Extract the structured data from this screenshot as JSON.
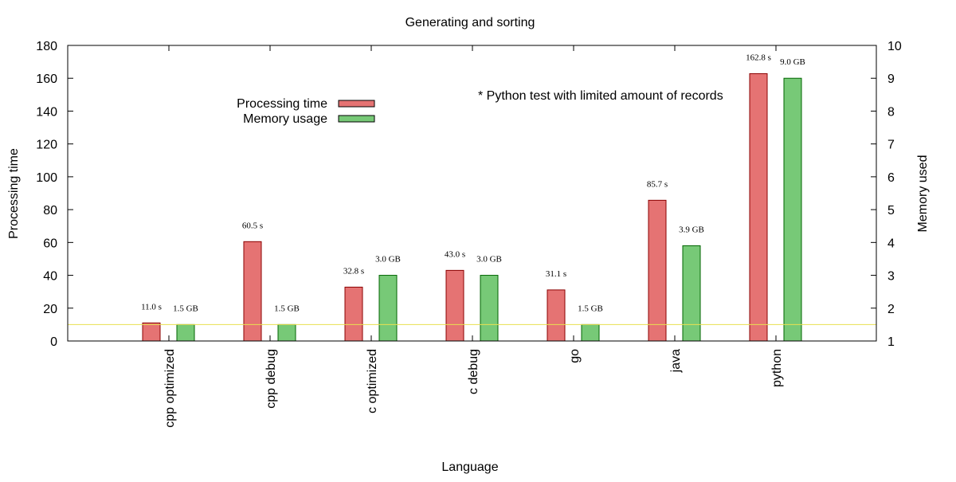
{
  "chart_data": {
    "type": "bar",
    "title": "Generating and sorting",
    "xlabel": "Language",
    "ylabel": "Processing time",
    "y2label": "Memory used",
    "categories": [
      "cpp optimized",
      "cpp debug",
      "c optimized",
      "c debug",
      "go",
      "java",
      "python"
    ],
    "ylim": [
      0,
      180
    ],
    "yticks": [
      0,
      20,
      40,
      60,
      80,
      100,
      120,
      140,
      160,
      180
    ],
    "y2lim": [
      1,
      10
    ],
    "y2ticks": [
      1,
      2,
      3,
      4,
      5,
      6,
      7,
      8,
      9,
      10
    ],
    "series": [
      {
        "name": "Processing time",
        "axis": "y",
        "color": "#e57373",
        "values": [
          11.0,
          60.5,
          32.8,
          43.0,
          31.1,
          85.7,
          162.8
        ],
        "labels": [
          "11.0 s",
          "60.5 s",
          "32.8 s",
          "43.0 s",
          "31.1 s",
          "85.7 s",
          "162.8 s"
        ],
        "label_color": "#b71c1c"
      },
      {
        "name": "Memory usage",
        "axis": "y2",
        "color": "#77c977",
        "values": [
          1.5,
          1.5,
          3.0,
          3.0,
          1.5,
          3.9,
          9.0
        ],
        "labels": [
          "1.5 GB",
          "1.5 GB",
          "3.0 GB",
          "3.0 GB",
          "1.5 GB",
          "3.9 GB",
          "9.0 GB"
        ],
        "label_color": "#1b8a1b"
      }
    ],
    "reference_line": {
      "y2": 1.5,
      "color": "#e8e050"
    },
    "annotation": "* Python test with limited amount of records",
    "legend": "top-left",
    "grid": false
  }
}
